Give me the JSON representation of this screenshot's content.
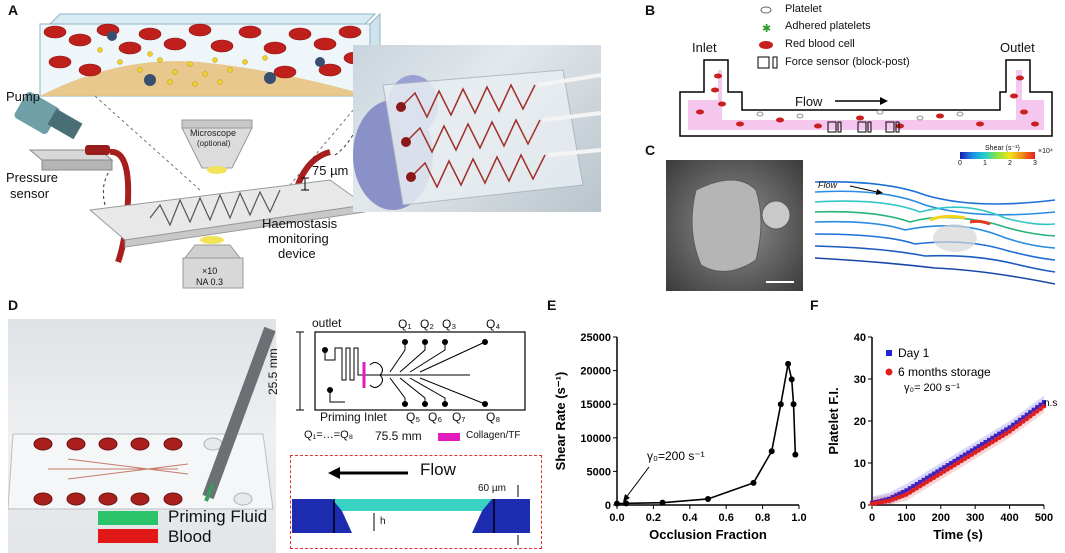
{
  "panels": {
    "A": {
      "label": "A",
      "pump": "Pump",
      "pressure_sensor_l1": "Pressure",
      "pressure_sensor_l2": "sensor",
      "microscope_l1": "Microscope",
      "microscope_l2": "(optional)",
      "depth": "75 µm",
      "objective_l1": "×10",
      "objective_l2": "NA 0.3",
      "device_l1": "Haemostasis",
      "device_l2": "monitoring",
      "device_l3": "device"
    },
    "B": {
      "label": "B",
      "legend": [
        "Platelet",
        "Adhered platelets",
        "Red blood cell",
        "Force sensor (block-post)"
      ],
      "inlet": "Inlet",
      "outlet": "Outlet",
      "flow": "Flow"
    },
    "C": {
      "label": "C",
      "flow": "Flow",
      "colorbar_title": "Shear (s⁻¹)",
      "colorbar_mult": "×10⁴",
      "colorbar_ticks": [
        "0",
        "1",
        "2",
        "3"
      ]
    },
    "D": {
      "label": "D",
      "legend_priming": "Priming Fluid",
      "legend_blood": "Blood",
      "outlet": "outlet",
      "height_dim": "25.5 mm",
      "width_dim": "75.5 mm",
      "priming_inlet": "Priming Inlet",
      "q_equal": "Q₁=…=Q₈",
      "collagen": "Collagen/TF",
      "top_q": [
        "Q₁",
        "Q₂",
        "Q₃",
        "Q₄"
      ],
      "bottom_q": [
        "Q₅",
        "Q₆",
        "Q₇",
        "Q₈"
      ],
      "flow": "Flow",
      "height_60": "60 µm",
      "h": "h"
    },
    "E": {
      "label": "E"
    },
    "F": {
      "label": "F"
    }
  },
  "chart_data": [
    {
      "panel": "E",
      "type": "line",
      "xlabel": "Occlusion Fraction",
      "ylabel": "Shear Rate (s⁻¹)",
      "xlim": [
        0,
        1.0
      ],
      "ylim": [
        0,
        25000
      ],
      "xticks": [
        "0.0",
        "0.2",
        "0.4",
        "0.6",
        "0.8",
        "1.0"
      ],
      "yticks": [
        "0",
        "5000",
        "10000",
        "15000",
        "20000",
        "25000"
      ],
      "annotation": "γ₀=200 s⁻¹",
      "x": [
        0.0,
        0.05,
        0.25,
        0.5,
        0.75,
        0.85,
        0.9,
        0.94,
        0.96,
        0.97,
        0.98
      ],
      "y": [
        200,
        250,
        350,
        900,
        3300,
        8000,
        15000,
        21000,
        18700,
        15000,
        7500
      ]
    },
    {
      "panel": "F",
      "type": "line",
      "xlabel": "Time (s)",
      "ylabel": "Platelet  F.I.",
      "xlim": [
        0,
        500
      ],
      "ylim": [
        0,
        40
      ],
      "xticks": [
        "0",
        "100",
        "200",
        "300",
        "400",
        "500"
      ],
      "yticks": [
        "0",
        "10",
        "20",
        "30",
        "40"
      ],
      "annotation": "γ₀= 200 s⁻¹",
      "significance": "n.s",
      "series": [
        {
          "name": "Day 1",
          "color": "#2222dd",
          "x": [
            0,
            50,
            100,
            150,
            200,
            250,
            300,
            350,
            400,
            450,
            500
          ],
          "y": [
            0.5,
            1.5,
            3.5,
            6,
            8.5,
            11,
            13.5,
            16,
            18.5,
            21.5,
            24.5
          ]
        },
        {
          "name": "6 months storage",
          "color": "#e02020",
          "x": [
            0,
            50,
            100,
            150,
            200,
            250,
            300,
            350,
            400,
            450,
            500
          ],
          "y": [
            0.3,
            1,
            2.5,
            5,
            7.5,
            10,
            12.5,
            15,
            17.5,
            20.5,
            23.5
          ]
        }
      ]
    }
  ]
}
